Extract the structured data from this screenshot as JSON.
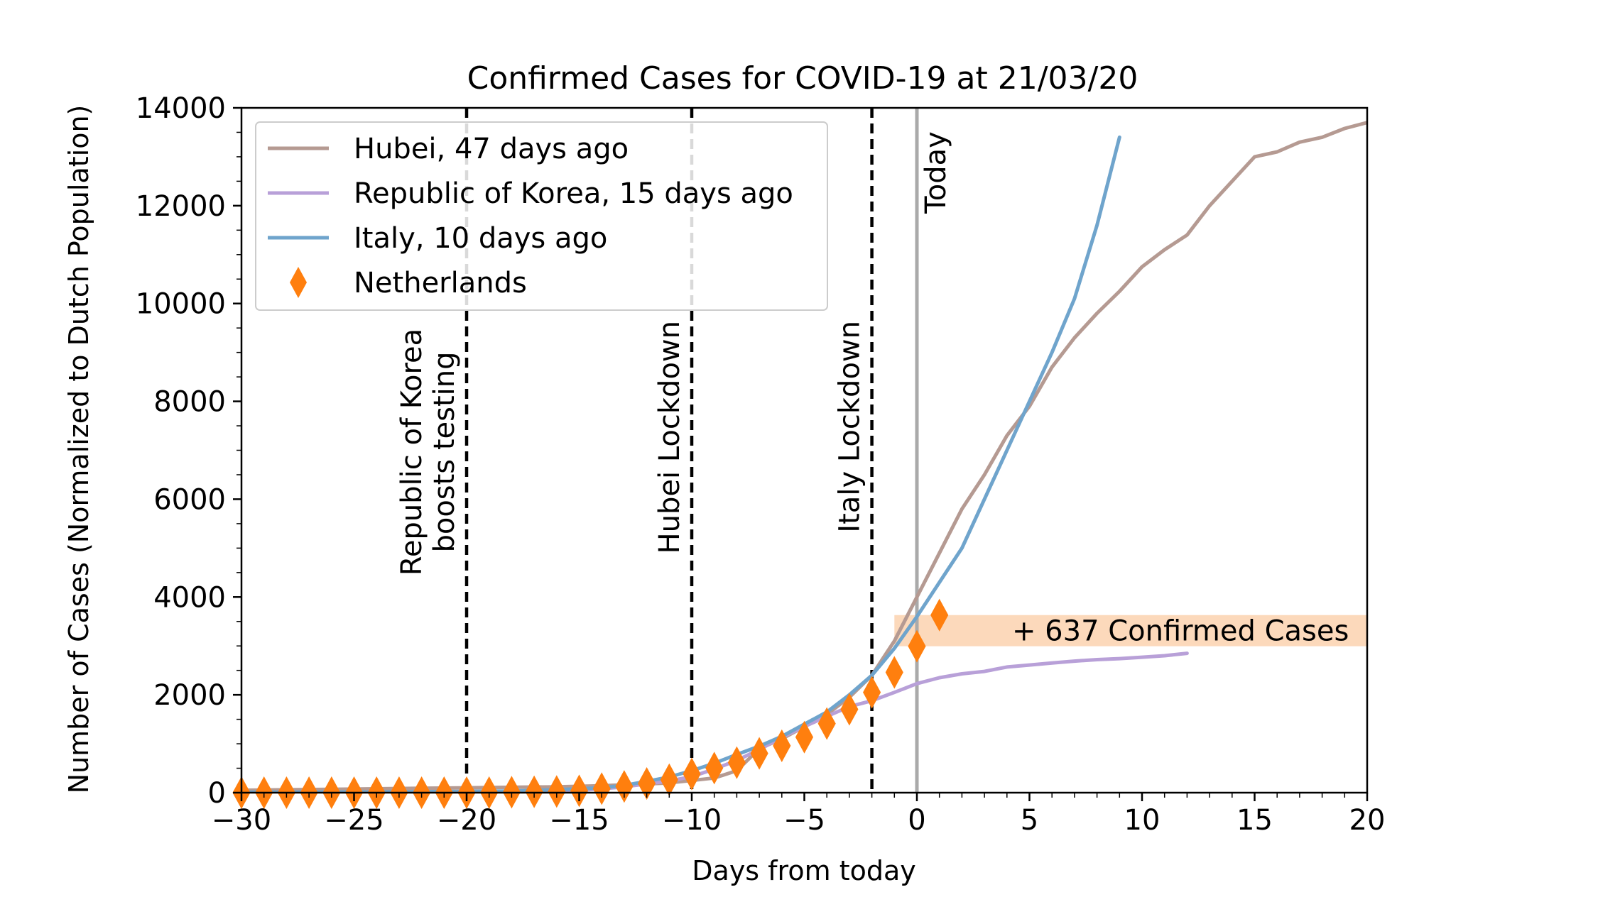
{
  "chart_data": {
    "type": "line",
    "title": "Confirmed Cases for COVID-19 at 21/03/20",
    "xlabel": "Days from today",
    "ylabel": "Number of Cases (Normalized to Dutch Population)",
    "xlim": [
      -30,
      20
    ],
    "ylim": [
      0,
      14000
    ],
    "x_ticks": [
      -30,
      -25,
      -20,
      -15,
      -10,
      -5,
      0,
      5,
      10,
      15,
      20
    ],
    "x_tick_labels": [
      "−30",
      "−25",
      "−20",
      "−15",
      "−10",
      "−5",
      "0",
      "5",
      "10",
      "15",
      "20"
    ],
    "y_ticks": [
      0,
      2000,
      4000,
      6000,
      8000,
      10000,
      12000,
      14000
    ],
    "y_tick_labels": [
      "0",
      "2000",
      "4000",
      "6000",
      "8000",
      "10000",
      "12000",
      "14000"
    ],
    "grid": false,
    "legend_position": "top-left",
    "series": [
      {
        "name": "Hubei, 47 days ago",
        "color": "#b59a92",
        "kind": "line",
        "points": [
          [
            -30,
            50
          ],
          [
            -28,
            60
          ],
          [
            -26,
            70
          ],
          [
            -24,
            80
          ],
          [
            -22,
            90
          ],
          [
            -20,
            100
          ],
          [
            -18,
            110
          ],
          [
            -16,
            120
          ],
          [
            -14,
            140
          ],
          [
            -12,
            180
          ],
          [
            -11,
            200
          ],
          [
            -10,
            250
          ],
          [
            -9,
            300
          ],
          [
            -8,
            450
          ],
          [
            -7,
            900
          ],
          [
            -6,
            1100
          ],
          [
            -5,
            1350
          ],
          [
            -4,
            1600
          ],
          [
            -3,
            1950
          ],
          [
            -2,
            2400
          ],
          [
            -1,
            3100
          ],
          [
            0,
            4000
          ],
          [
            1,
            4900
          ],
          [
            2,
            5800
          ],
          [
            3,
            6500
          ],
          [
            4,
            7300
          ],
          [
            5,
            7900
          ],
          [
            6,
            8700
          ],
          [
            7,
            9300
          ],
          [
            8,
            9800
          ],
          [
            9,
            10250
          ],
          [
            10,
            10750
          ],
          [
            11,
            11100
          ],
          [
            12,
            11400
          ],
          [
            13,
            12000
          ],
          [
            14,
            12500
          ],
          [
            15,
            13000
          ],
          [
            16,
            13100
          ],
          [
            17,
            13300
          ],
          [
            18,
            13400
          ],
          [
            19,
            13580
          ],
          [
            20,
            13700
          ]
        ]
      },
      {
        "name": "Republic of Korea, 15 days ago",
        "color": "#b8a0d8",
        "kind": "line",
        "points": [
          [
            -30,
            5
          ],
          [
            -25,
            10
          ],
          [
            -20,
            20
          ],
          [
            -18,
            25
          ],
          [
            -16,
            35
          ],
          [
            -15,
            50
          ],
          [
            -14,
            80
          ],
          [
            -13,
            120
          ],
          [
            -12,
            180
          ],
          [
            -11,
            240
          ],
          [
            -10,
            330
          ],
          [
            -9,
            480
          ],
          [
            -8,
            660
          ],
          [
            -7,
            880
          ],
          [
            -6,
            1130
          ],
          [
            -5,
            1350
          ],
          [
            -4,
            1560
          ],
          [
            -3,
            1760
          ],
          [
            -2,
            1880
          ],
          [
            -1,
            2050
          ],
          [
            0,
            2230
          ],
          [
            1,
            2350
          ],
          [
            2,
            2430
          ],
          [
            3,
            2480
          ],
          [
            4,
            2570
          ],
          [
            5,
            2610
          ],
          [
            6,
            2650
          ],
          [
            7,
            2690
          ],
          [
            8,
            2720
          ],
          [
            9,
            2740
          ],
          [
            10,
            2770
          ],
          [
            11,
            2800
          ],
          [
            12,
            2850
          ]
        ]
      },
      {
        "name": "Italy, 10 days ago",
        "color": "#6fa4cc",
        "kind": "line",
        "points": [
          [
            -30,
            10
          ],
          [
            -25,
            15
          ],
          [
            -20,
            25
          ],
          [
            -18,
            35
          ],
          [
            -16,
            60
          ],
          [
            -15,
            80
          ],
          [
            -14,
            100
          ],
          [
            -13,
            150
          ],
          [
            -12,
            230
          ],
          [
            -11,
            320
          ],
          [
            -10,
            450
          ],
          [
            -9,
            600
          ],
          [
            -8,
            780
          ],
          [
            -7,
            950
          ],
          [
            -6,
            1150
          ],
          [
            -5,
            1400
          ],
          [
            -4,
            1650
          ],
          [
            -3,
            2000
          ],
          [
            -2,
            2400
          ],
          [
            -1,
            2950
          ],
          [
            0,
            3600
          ],
          [
            1,
            4300
          ],
          [
            2,
            5000
          ],
          [
            3,
            6000
          ],
          [
            4,
            7000
          ],
          [
            5,
            8000
          ],
          [
            6,
            9000
          ],
          [
            7,
            10100
          ],
          [
            8,
            11600
          ],
          [
            9,
            13400
          ]
        ]
      },
      {
        "name": "Netherlands",
        "color": "#ff7f0e",
        "kind": "markers",
        "marker": "diamond",
        "points": [
          [
            -30,
            0
          ],
          [
            -29,
            0
          ],
          [
            -28,
            0
          ],
          [
            -27,
            0
          ],
          [
            -26,
            0
          ],
          [
            -25,
            0
          ],
          [
            -24,
            0
          ],
          [
            -23,
            0
          ],
          [
            -22,
            0
          ],
          [
            -21,
            0
          ],
          [
            -20,
            0
          ],
          [
            -19,
            1
          ],
          [
            -18,
            10
          ],
          [
            -17,
            18
          ],
          [
            -16,
            24
          ],
          [
            -15,
            38
          ],
          [
            -14,
            82
          ],
          [
            -13,
            128
          ],
          [
            -12,
            188
          ],
          [
            -11,
            265
          ],
          [
            -10,
            382
          ],
          [
            -9,
            503
          ],
          [
            -8,
            614
          ],
          [
            -7,
            804
          ],
          [
            -6,
            959
          ],
          [
            -5,
            1135
          ],
          [
            -4,
            1413
          ],
          [
            -3,
            1705
          ],
          [
            -2,
            2051
          ],
          [
            -1,
            2460
          ],
          [
            0,
            2994
          ],
          [
            1,
            3631
          ]
        ]
      }
    ],
    "vlines": [
      {
        "x": -20,
        "label_lines": [
          "Republic of Korea",
          "boosts testing"
        ],
        "style": "dashed",
        "color": "#000000"
      },
      {
        "x": -10,
        "label_lines": [
          "Hubei Lockdown"
        ],
        "style": "dashed",
        "color": "#000000"
      },
      {
        "x": -2,
        "label_lines": [
          "Italy Lockdown"
        ],
        "style": "dashed",
        "color": "#000000"
      },
      {
        "x": 0,
        "label_lines": [
          "Today"
        ],
        "style": "solid",
        "color": "#aaaaaa"
      }
    ],
    "band": {
      "x": [
        -1,
        20
      ],
      "y": [
        2994,
        3631
      ],
      "color": "#fcd5b4",
      "label": "+ 637 Confirmed Cases"
    }
  }
}
